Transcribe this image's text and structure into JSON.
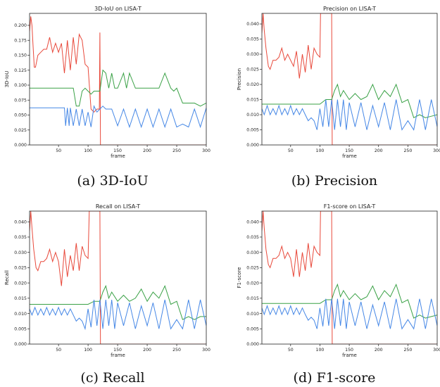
{
  "colors": {
    "red": "#e8493b",
    "green": "#3aa146",
    "blue": "#4587e6"
  },
  "chart_data": [
    {
      "type": "line",
      "title": "3D-IoU on LISA-T",
      "xlabel": "frame",
      "ylabel": "3D-IoU",
      "caption": "(a) 3D-IoU",
      "xlim": [
        1,
        300
      ],
      "ylim": [
        0,
        0.22
      ],
      "xticks": [
        50,
        100,
        150,
        200,
        250,
        300
      ],
      "yticks": [
        0.0,
        0.025,
        0.05,
        0.075,
        0.1,
        0.125,
        0.15,
        0.175,
        0.2
      ],
      "ytick_labels": [
        "0.000",
        "0.025",
        "0.050",
        "0.075",
        "0.100",
        "0.125",
        "0.150",
        "0.175",
        "0.200"
      ],
      "grid": false,
      "series": [
        {
          "color": "red",
          "x": [
            1,
            3,
            5,
            7,
            9,
            11,
            15,
            20,
            25,
            30,
            35,
            40,
            45,
            50,
            55,
            60,
            65,
            70,
            75,
            80,
            85,
            90,
            95,
            100,
            105,
            110,
            115,
            119,
            120,
            121,
            122,
            300
          ],
          "y": [
            0.19,
            0.215,
            0.2,
            0.165,
            0.13,
            0.13,
            0.15,
            0.155,
            0.16,
            0.16,
            0.18,
            0.155,
            0.17,
            0.155,
            0.17,
            0.12,
            0.175,
            0.125,
            0.18,
            0.135,
            0.185,
            0.175,
            0.135,
            0.13,
            0.06,
            0.055,
            0.06,
            0.06,
            0.188,
            0.0,
            0.0,
            0.0
          ]
        },
        {
          "color": "green",
          "x": [
            1,
            60,
            70,
            75,
            80,
            85,
            90,
            95,
            100,
            105,
            110,
            120,
            125,
            130,
            135,
            140,
            145,
            150,
            160,
            165,
            170,
            180,
            200,
            220,
            230,
            240,
            245,
            250,
            260,
            270,
            280,
            290,
            300
          ],
          "y": [
            0.095,
            0.095,
            0.095,
            0.095,
            0.065,
            0.065,
            0.09,
            0.095,
            0.09,
            0.085,
            0.09,
            0.09,
            0.125,
            0.12,
            0.095,
            0.12,
            0.095,
            0.095,
            0.12,
            0.095,
            0.12,
            0.095,
            0.095,
            0.095,
            0.12,
            0.095,
            0.09,
            0.095,
            0.07,
            0.07,
            0.07,
            0.065,
            0.07
          ]
        },
        {
          "color": "blue",
          "x": [
            1,
            60,
            62,
            65,
            68,
            70,
            75,
            80,
            85,
            90,
            95,
            100,
            105,
            110,
            115,
            120,
            125,
            130,
            140,
            150,
            160,
            170,
            180,
            190,
            200,
            210,
            220,
            230,
            240,
            250,
            260,
            270,
            280,
            290,
            300
          ],
          "y": [
            0.062,
            0.062,
            0.032,
            0.062,
            0.032,
            0.062,
            0.032,
            0.06,
            0.032,
            0.06,
            0.032,
            0.055,
            0.03,
            0.065,
            0.055,
            0.06,
            0.065,
            0.06,
            0.06,
            0.032,
            0.06,
            0.03,
            0.06,
            0.03,
            0.06,
            0.03,
            0.06,
            0.03,
            0.06,
            0.03,
            0.035,
            0.03,
            0.06,
            0.03,
            0.062
          ]
        }
      ]
    },
    {
      "type": "line",
      "title": "Precision on LISA-T",
      "xlabel": "frame",
      "ylabel": "Precision",
      "caption": "(b) Precision",
      "xlim": [
        1,
        300
      ],
      "ylim": [
        0,
        0.0435
      ],
      "xticks": [
        50,
        100,
        150,
        200,
        250,
        300
      ],
      "yticks": [
        0.0,
        0.005,
        0.01,
        0.015,
        0.02,
        0.025,
        0.03,
        0.035,
        0.04
      ],
      "ytick_labels": [
        "0.000",
        "0.005",
        "0.010",
        "0.015",
        "0.020",
        "0.025",
        "0.030",
        "0.035",
        "0.040"
      ],
      "grid": false,
      "series": [
        {
          "color": "red",
          "x": [
            1,
            3,
            5,
            8,
            12,
            15,
            20,
            25,
            30,
            35,
            40,
            45,
            50,
            55,
            60,
            65,
            70,
            75,
            80,
            85,
            90,
            95,
            100,
            101,
            105,
            120,
            121,
            122,
            300
          ],
          "y": [
            0.037,
            0.0435,
            0.038,
            0.032,
            0.026,
            0.025,
            0.028,
            0.028,
            0.029,
            0.032,
            0.028,
            0.03,
            0.028,
            0.026,
            0.031,
            0.022,
            0.03,
            0.024,
            0.033,
            0.025,
            0.032,
            0.03,
            0.029,
            0.0435,
            0.0435,
            0.0435,
            0.0,
            0.0,
            0.0
          ]
        },
        {
          "color": "green",
          "x": [
            1,
            60,
            70,
            80,
            90,
            100,
            110,
            120,
            125,
            130,
            135,
            140,
            150,
            160,
            170,
            180,
            190,
            200,
            210,
            220,
            230,
            240,
            250,
            260,
            270,
            280,
            290,
            300
          ],
          "y": [
            0.0135,
            0.0135,
            0.0135,
            0.0135,
            0.0135,
            0.0135,
            0.015,
            0.015,
            0.018,
            0.02,
            0.016,
            0.018,
            0.015,
            0.017,
            0.015,
            0.016,
            0.02,
            0.015,
            0.018,
            0.016,
            0.02,
            0.014,
            0.015,
            0.009,
            0.01,
            0.009,
            0.0095,
            0.01
          ]
        },
        {
          "color": "blue",
          "x": [
            1,
            5,
            10,
            15,
            20,
            25,
            30,
            35,
            40,
            45,
            50,
            55,
            60,
            65,
            70,
            75,
            80,
            85,
            90,
            95,
            100,
            105,
            110,
            115,
            120,
            125,
            130,
            135,
            140,
            145,
            150,
            160,
            170,
            180,
            190,
            200,
            210,
            220,
            230,
            240,
            250,
            260,
            270,
            280,
            290,
            300
          ],
          "y": [
            0.012,
            0.01,
            0.013,
            0.01,
            0.012,
            0.01,
            0.013,
            0.01,
            0.012,
            0.01,
            0.013,
            0.01,
            0.012,
            0.01,
            0.012,
            0.01,
            0.008,
            0.009,
            0.008,
            0.005,
            0.012,
            0.006,
            0.015,
            0.006,
            0.015,
            0.005,
            0.015,
            0.006,
            0.015,
            0.005,
            0.014,
            0.006,
            0.014,
            0.005,
            0.013,
            0.006,
            0.014,
            0.005,
            0.015,
            0.005,
            0.008,
            0.005,
            0.015,
            0.005,
            0.015,
            0.006
          ]
        }
      ]
    },
    {
      "type": "line",
      "title": "Recall on LISA-T",
      "xlabel": "frame",
      "ylabel": "Recall",
      "caption": "(c) Recall",
      "xlim": [
        1,
        300
      ],
      "ylim": [
        0,
        0.0435
      ],
      "xticks": [
        50,
        100,
        150,
        200,
        250,
        300
      ],
      "yticks": [
        0.0,
        0.005,
        0.01,
        0.015,
        0.02,
        0.025,
        0.03,
        0.035,
        0.04
      ],
      "ytick_labels": [
        "0.000",
        "0.005",
        "0.010",
        "0.015",
        "0.020",
        "0.025",
        "0.030",
        "0.035",
        "0.040"
      ],
      "grid": false,
      "series": [
        {
          "color": "red",
          "x": [
            1,
            3,
            5,
            8,
            12,
            15,
            20,
            25,
            30,
            35,
            40,
            45,
            50,
            55,
            60,
            65,
            70,
            75,
            80,
            85,
            90,
            95,
            100,
            102,
            104,
            118,
            120,
            121,
            122,
            300
          ],
          "y": [
            0.037,
            0.0435,
            0.038,
            0.031,
            0.025,
            0.024,
            0.027,
            0.027,
            0.028,
            0.031,
            0.027,
            0.03,
            0.027,
            0.019,
            0.031,
            0.022,
            0.029,
            0.024,
            0.033,
            0.024,
            0.032,
            0.029,
            0.028,
            0.0435,
            0.0435,
            0.0435,
            0.0435,
            0.0,
            0.0,
            0.0
          ]
        },
        {
          "color": "green",
          "x": [
            1,
            60,
            70,
            80,
            90,
            100,
            110,
            120,
            125,
            130,
            135,
            140,
            150,
            160,
            170,
            180,
            190,
            200,
            210,
            220,
            230,
            240,
            250,
            260,
            270,
            280,
            290,
            300
          ],
          "y": [
            0.013,
            0.013,
            0.013,
            0.013,
            0.013,
            0.013,
            0.014,
            0.014,
            0.017,
            0.019,
            0.015,
            0.017,
            0.014,
            0.016,
            0.014,
            0.015,
            0.018,
            0.014,
            0.017,
            0.015,
            0.019,
            0.013,
            0.014,
            0.008,
            0.009,
            0.008,
            0.009,
            0.009
          ]
        },
        {
          "color": "blue",
          "x": [
            1,
            5,
            10,
            15,
            20,
            25,
            30,
            35,
            40,
            45,
            50,
            55,
            60,
            65,
            70,
            75,
            80,
            85,
            90,
            95,
            100,
            105,
            110,
            115,
            120,
            125,
            130,
            135,
            140,
            145,
            150,
            160,
            170,
            180,
            190,
            200,
            210,
            220,
            230,
            240,
            250,
            260,
            270,
            280,
            290,
            300
          ],
          "y": [
            0.0115,
            0.0095,
            0.012,
            0.0095,
            0.0115,
            0.0095,
            0.012,
            0.0095,
            0.0115,
            0.0095,
            0.012,
            0.0095,
            0.0115,
            0.0095,
            0.0115,
            0.0095,
            0.0075,
            0.0085,
            0.0075,
            0.005,
            0.0115,
            0.0055,
            0.0145,
            0.006,
            0.0145,
            0.005,
            0.0145,
            0.006,
            0.0145,
            0.005,
            0.0135,
            0.006,
            0.0135,
            0.005,
            0.0125,
            0.006,
            0.0135,
            0.005,
            0.0145,
            0.005,
            0.008,
            0.005,
            0.0145,
            0.005,
            0.0145,
            0.006
          ]
        }
      ]
    },
    {
      "type": "line",
      "title": "F1-score on LISA-T",
      "xlabel": "frame",
      "ylabel": "F1-score",
      "caption": "(d) F1-score",
      "xlim": [
        1,
        300
      ],
      "ylim": [
        0,
        0.0435
      ],
      "xticks": [
        50,
        100,
        150,
        200,
        250,
        300
      ],
      "yticks": [
        0.0,
        0.005,
        0.01,
        0.015,
        0.02,
        0.025,
        0.03,
        0.035,
        0.04
      ],
      "ytick_labels": [
        "0.000",
        "0.005",
        "0.010",
        "0.015",
        "0.020",
        "0.025",
        "0.030",
        "0.035",
        "0.040"
      ],
      "grid": false,
      "series": [
        {
          "color": "red",
          "x": [
            1,
            3,
            5,
            8,
            12,
            15,
            20,
            25,
            30,
            35,
            40,
            45,
            50,
            55,
            60,
            65,
            70,
            75,
            80,
            85,
            90,
            95,
            100,
            101,
            105,
            120,
            121,
            122,
            300
          ],
          "y": [
            0.037,
            0.0435,
            0.038,
            0.031,
            0.026,
            0.025,
            0.028,
            0.028,
            0.029,
            0.032,
            0.028,
            0.03,
            0.028,
            0.022,
            0.031,
            0.022,
            0.03,
            0.024,
            0.033,
            0.025,
            0.032,
            0.03,
            0.029,
            0.0435,
            0.0435,
            0.0435,
            0.0,
            0.0,
            0.0
          ]
        },
        {
          "color": "green",
          "x": [
            1,
            60,
            70,
            80,
            90,
            100,
            110,
            120,
            125,
            130,
            135,
            140,
            150,
            160,
            170,
            180,
            190,
            200,
            210,
            220,
            230,
            240,
            250,
            260,
            270,
            280,
            290,
            300
          ],
          "y": [
            0.0133,
            0.0133,
            0.0133,
            0.0133,
            0.0133,
            0.0133,
            0.0145,
            0.0145,
            0.0175,
            0.0195,
            0.0155,
            0.0175,
            0.0145,
            0.0165,
            0.0145,
            0.0155,
            0.019,
            0.0145,
            0.0175,
            0.0155,
            0.0195,
            0.0135,
            0.0145,
            0.0085,
            0.0095,
            0.0085,
            0.009,
            0.0095
          ]
        },
        {
          "color": "blue",
          "x": [
            1,
            5,
            10,
            15,
            20,
            25,
            30,
            35,
            40,
            45,
            50,
            55,
            60,
            65,
            70,
            75,
            80,
            85,
            90,
            95,
            100,
            105,
            110,
            115,
            120,
            125,
            130,
            135,
            140,
            145,
            150,
            160,
            170,
            180,
            190,
            200,
            210,
            220,
            230,
            240,
            250,
            260,
            270,
            280,
            290,
            300
          ],
          "y": [
            0.0118,
            0.0097,
            0.0125,
            0.0097,
            0.0118,
            0.0097,
            0.0125,
            0.0097,
            0.0118,
            0.0097,
            0.0125,
            0.0097,
            0.0118,
            0.0097,
            0.0118,
            0.0097,
            0.0078,
            0.0088,
            0.0078,
            0.005,
            0.0118,
            0.0058,
            0.0148,
            0.006,
            0.0148,
            0.005,
            0.0148,
            0.006,
            0.0148,
            0.005,
            0.0138,
            0.006,
            0.0138,
            0.005,
            0.0128,
            0.006,
            0.0138,
            0.005,
            0.0148,
            0.005,
            0.008,
            0.005,
            0.0148,
            0.005,
            0.0148,
            0.006
          ]
        }
      ]
    }
  ]
}
